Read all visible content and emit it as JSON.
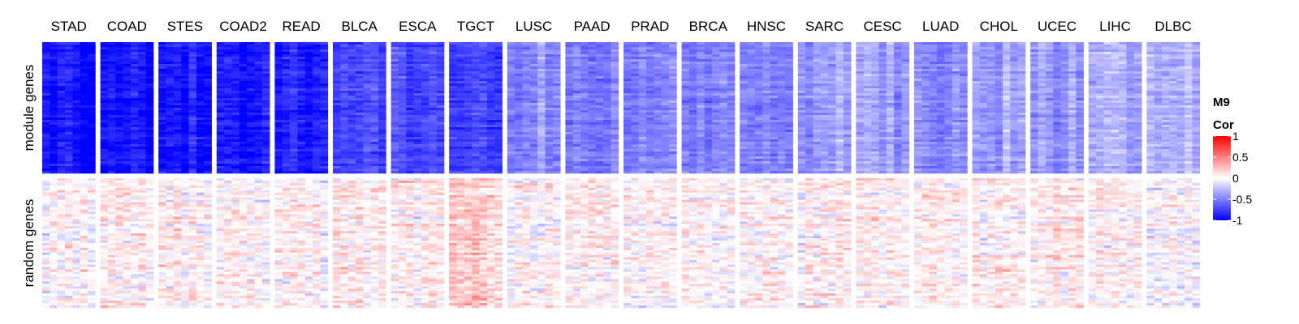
{
  "chart_data": {
    "type": "heatmap",
    "columns": [
      "STAD",
      "COAD",
      "STES",
      "COAD2",
      "READ",
      "BLCA",
      "ESCA",
      "TGCT",
      "LUSC",
      "PAAD",
      "PRAD",
      "BRCA",
      "HNSC",
      "SARC",
      "CESC",
      "LUAD",
      "CHOL",
      "UCEC",
      "LIHC",
      "DLBC"
    ],
    "row_groups": [
      {
        "label": "module genes",
        "approx_mean_cor": [
          -0.95,
          -0.9,
          -0.9,
          -0.9,
          -0.85,
          -0.7,
          -0.7,
          -0.75,
          -0.45,
          -0.5,
          -0.5,
          -0.5,
          -0.5,
          -0.4,
          -0.4,
          -0.45,
          -0.35,
          -0.4,
          -0.35,
          -0.3
        ]
      },
      {
        "label": "random genes",
        "approx_mean_cor": [
          0.05,
          0.05,
          0.05,
          0.05,
          0.05,
          0.05,
          0.05,
          0.2,
          0.05,
          0.05,
          0.05,
          0.05,
          0.05,
          0.05,
          0.05,
          0.05,
          0.05,
          0.05,
          0.05,
          0.0
        ]
      }
    ],
    "legend": {
      "title_line1": "M9",
      "title_line2": "Cor",
      "ticks": [
        "1",
        "0.5",
        "0",
        "-0.5",
        "-1"
      ],
      "tick_values": [
        1,
        0.5,
        0,
        -0.5,
        -1
      ],
      "range": [
        -1,
        1
      ],
      "color_low": "#0000ff",
      "color_mid": "#ffffff",
      "color_high": "#ff0000",
      "placement": "right"
    }
  }
}
